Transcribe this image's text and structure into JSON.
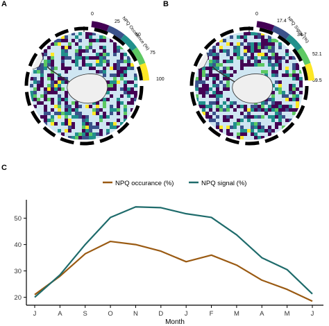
{
  "panels": {
    "a": {
      "letter": "A",
      "colorbar": {
        "title": "NPQ Occurence (%)",
        "ticks": [
          "0",
          "25",
          "50",
          "75",
          "100"
        ]
      }
    },
    "b": {
      "letter": "B",
      "colorbar": {
        "title": "NPQ Signal (%)",
        "ticks": [
          "0",
          "17.4",
          "34.7",
          "52.1",
          "69.5"
        ]
      }
    },
    "c": {
      "letter": "C"
    }
  },
  "colors": {
    "occurance": "#9a5a12",
    "signal": "#1e6b6b",
    "ocean": "#cfe6f2",
    "land": "#efefef",
    "viridis": [
      "#440154",
      "#3b528b",
      "#21908c",
      "#5dc863",
      "#fde725"
    ]
  },
  "chart_data": {
    "type": "line",
    "xlabel": "Month",
    "ylabel": "",
    "categories": [
      "J",
      "A",
      "S",
      "O",
      "N",
      "D",
      "J",
      "F",
      "M",
      "A",
      "M",
      "J"
    ],
    "ylim": [
      17,
      57
    ],
    "yticks": [
      20,
      30,
      40,
      50
    ],
    "legend_position": "top",
    "series": [
      {
        "name": "NPQ occurance (%)",
        "values": [
          21,
          28,
          36.5,
          41.2,
          40,
          37.5,
          33.5,
          36,
          32.2,
          26.5,
          23,
          18.5
        ]
      },
      {
        "name": "NPQ signal (%)",
        "values": [
          20,
          28.5,
          40,
          50.3,
          54.3,
          54,
          51.7,
          50.3,
          43.7,
          35,
          30.5,
          21.3
        ]
      }
    ]
  }
}
